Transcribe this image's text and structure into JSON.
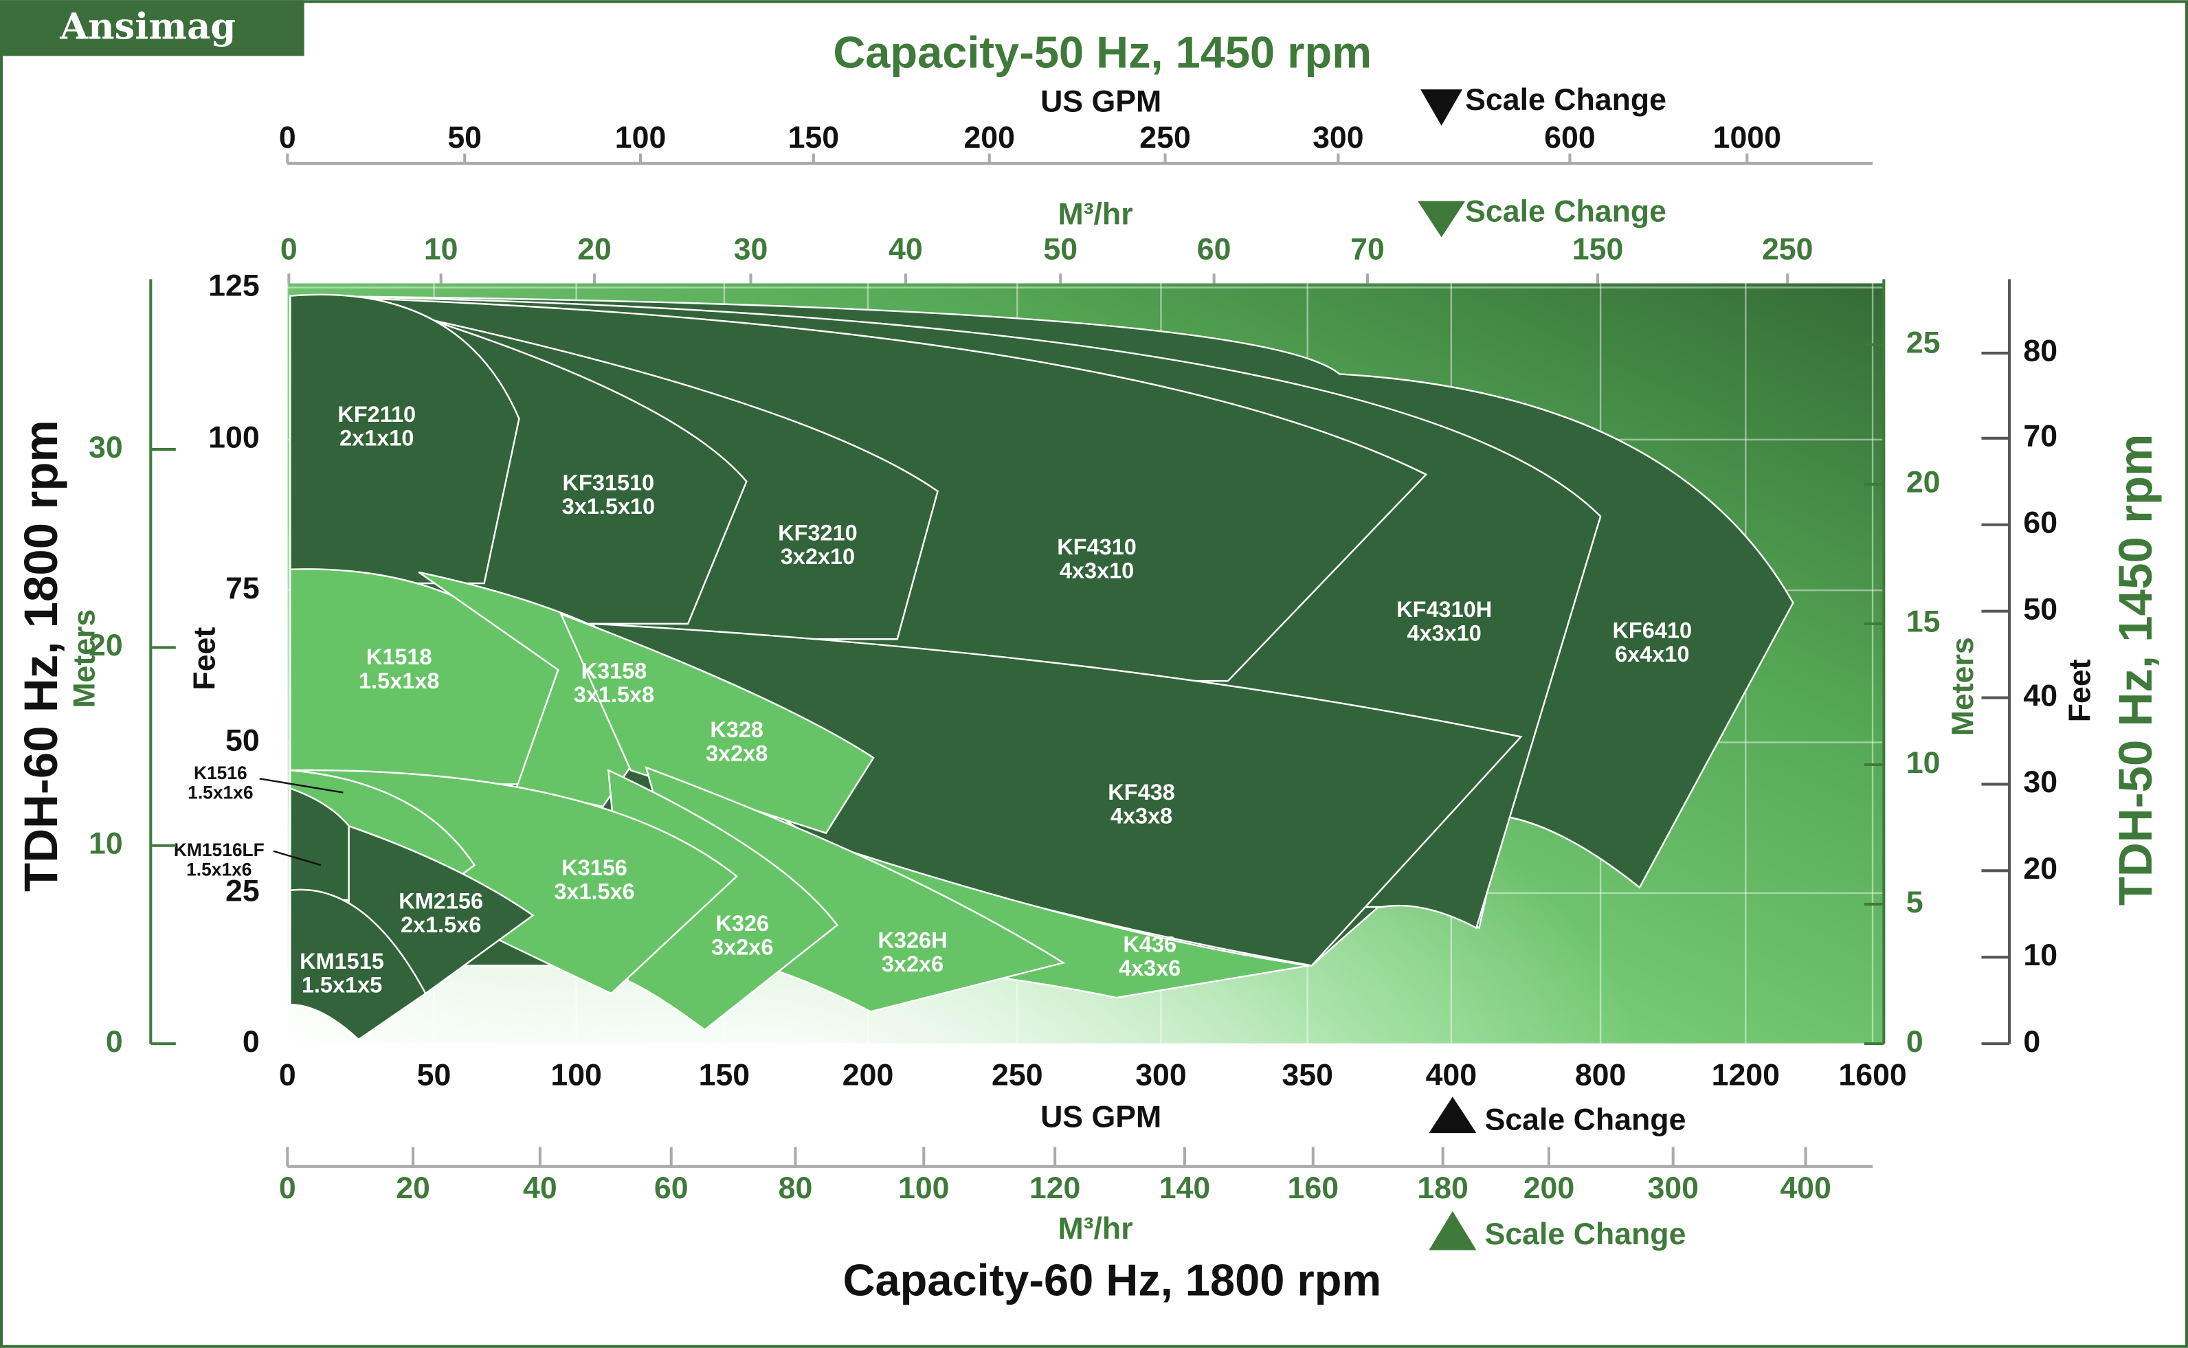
{
  "header": {
    "brand": "Ansimag"
  },
  "top_axes": {
    "title": "Capacity-50 Hz, 1450 rpm",
    "gpm_label": "US GPM",
    "gpm_ticks": [
      0,
      50,
      100,
      150,
      200,
      250,
      300,
      600,
      1000
    ],
    "gpm_scale_change": "Scale Change",
    "m3_label": "M³/hr",
    "m3_ticks": [
      0,
      10,
      20,
      30,
      40,
      50,
      60,
      70,
      150,
      250
    ],
    "m3_scale_change": "Scale Change"
  },
  "bottom_axes": {
    "title": "Capacity-60 Hz, 1800 rpm",
    "gpm_label": "US GPM",
    "gpm_ticks": [
      0,
      50,
      100,
      150,
      200,
      250,
      300,
      350,
      400,
      800,
      1200,
      1600
    ],
    "gpm_scale_change": "Scale Change",
    "m3_label": "M³/hr",
    "m3_ticks": [
      0,
      20,
      40,
      60,
      80,
      100,
      120,
      140,
      160,
      180,
      200,
      300,
      400
    ],
    "m3_scale_change": "Scale Change"
  },
  "left_axes": {
    "title": "TDH-60 Hz, 1800 rpm",
    "feet_label": "Feet",
    "feet_ticks": [
      125,
      100,
      75,
      50,
      25,
      0
    ],
    "meters_label": "Meters",
    "meters_ticks": [
      30,
      20,
      10,
      0
    ]
  },
  "right_axes": {
    "title": "TDH-50 Hz, 1450 rpm",
    "meters_label": "Meters",
    "meters_ticks": [
      25,
      20,
      15,
      10,
      5,
      0
    ],
    "feet_label": "Feet",
    "feet_ticks": [
      80,
      70,
      60,
      50,
      40,
      30,
      20,
      10,
      0
    ]
  },
  "regions": [
    {
      "model": "KF2110",
      "size": "2x1x10"
    },
    {
      "model": "KF31510",
      "size": "3x1.5x10"
    },
    {
      "model": "KF3210",
      "size": "3x2x10"
    },
    {
      "model": "KF4310",
      "size": "4x3x10"
    },
    {
      "model": "KF4310H",
      "size": "4x3x10"
    },
    {
      "model": "KF6410",
      "size": "6x4x10"
    },
    {
      "model": "KF438",
      "size": "4x3x8"
    },
    {
      "model": "K1518",
      "size": "1.5x1x8"
    },
    {
      "model": "K3158",
      "size": "3x1.5x8"
    },
    {
      "model": "K328",
      "size": "3x2x8"
    },
    {
      "model": "K3156",
      "size": "3x1.5x6"
    },
    {
      "model": "K326",
      "size": "3x2x6"
    },
    {
      "model": "K326H",
      "size": "3x2x6"
    },
    {
      "model": "K436",
      "size": "4x3x6"
    },
    {
      "model": "KM2156",
      "size": "2x1.5x6"
    },
    {
      "model": "KM1515",
      "size": "1.5x1x5"
    },
    {
      "model": "K1516",
      "size": "1.5x1x6"
    },
    {
      "model": "KM1516LF",
      "size": "1.5x1x6"
    }
  ]
}
